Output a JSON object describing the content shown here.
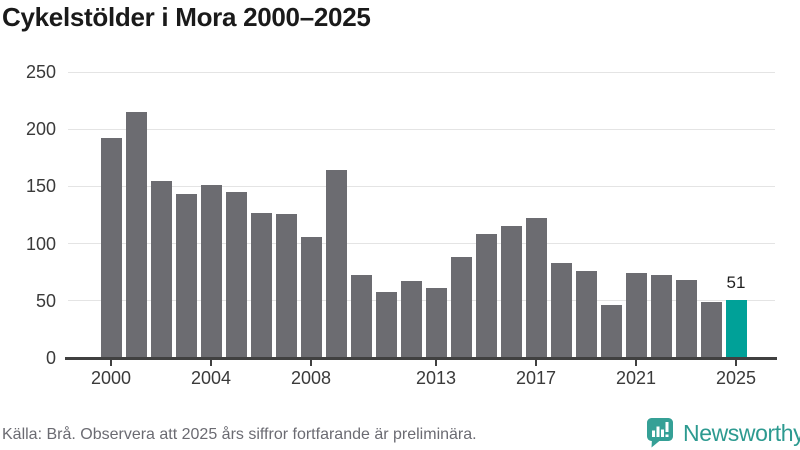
{
  "chart_data": {
    "type": "bar",
    "title": "Cykelstölder i Mora 2000–2025",
    "categories": [
      "2000",
      "2001",
      "2002",
      "2003",
      "2004",
      "2005",
      "2006",
      "2007",
      "2008",
      "2009",
      "2010",
      "2011",
      "2012",
      "2013",
      "2014",
      "2015",
      "2016",
      "2017",
      "2018",
      "2019",
      "2020",
      "2021",
      "2022",
      "2023",
      "2024",
      "2025"
    ],
    "values": [
      192,
      215,
      155,
      143,
      151,
      145,
      127,
      126,
      106,
      164,
      73,
      58,
      67,
      61,
      88,
      108,
      115,
      122,
      83,
      76,
      46,
      74,
      73,
      68,
      49,
      51
    ],
    "xlabel": "",
    "ylabel": "",
    "ylim": [
      0,
      250
    ],
    "yticks": [
      0,
      50,
      100,
      150,
      200,
      250
    ],
    "xticks": [
      "2000",
      "2004",
      "2008",
      "2013",
      "2017",
      "2021",
      "2025"
    ],
    "grid": "horizontal",
    "legend": "none",
    "highlight_category": "2025",
    "highlight_value_label": "51",
    "colors": {
      "bar": "#6c6c71",
      "highlight": "#00a198",
      "axis": "#404040",
      "gridline": "#e4e4e4"
    }
  },
  "footer": {
    "source": "Källa: Brå. Observera att 2025 års siffror fortfarande är preliminära.",
    "logo_text": "Newsworthy",
    "logo_icon": "newsworthy-speech-bubble-chart-icon",
    "logo_color": "#2d9a90"
  }
}
